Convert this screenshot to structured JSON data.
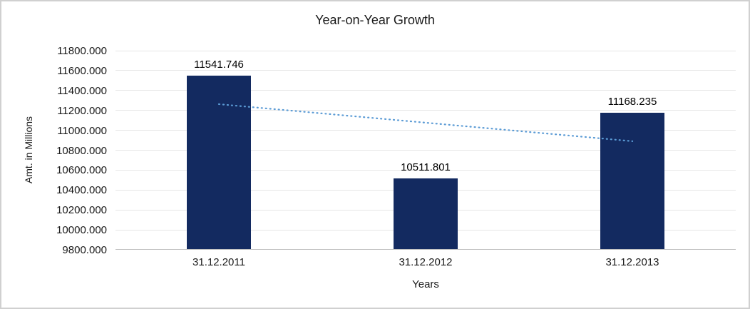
{
  "chart_data": {
    "type": "bar",
    "title": "Year-on-Year Growth",
    "categories": [
      "31.12.2011",
      "31.12.2012",
      "31.12.2013"
    ],
    "values": [
      11541.746,
      10511.801,
      11168.235
    ],
    "value_labels": [
      "11541.746",
      "10511.801",
      "11168.235"
    ],
    "xlabel": "Years",
    "ylabel": "Amt. in Millions",
    "ylim": [
      9800,
      11800
    ],
    "ytick_step": 200,
    "ytick_labels": [
      "9800.000",
      "10000.000",
      "10200.000",
      "10400.000",
      "10600.000",
      "10800.000",
      "11000.000",
      "11200.000",
      "11400.000",
      "11600.000",
      "11800.000"
    ],
    "bar_color": "#132a60",
    "gridline_color": "#e6e6e6",
    "axis_line_color": "#bfbfbf",
    "text_color": "#1a1a1a",
    "legend": "none",
    "grid": true,
    "trendline": {
      "type": "linear",
      "start_value": 11260.7,
      "end_value": 10887.2,
      "color": "#5b9bd5",
      "style": "dotted"
    }
  }
}
